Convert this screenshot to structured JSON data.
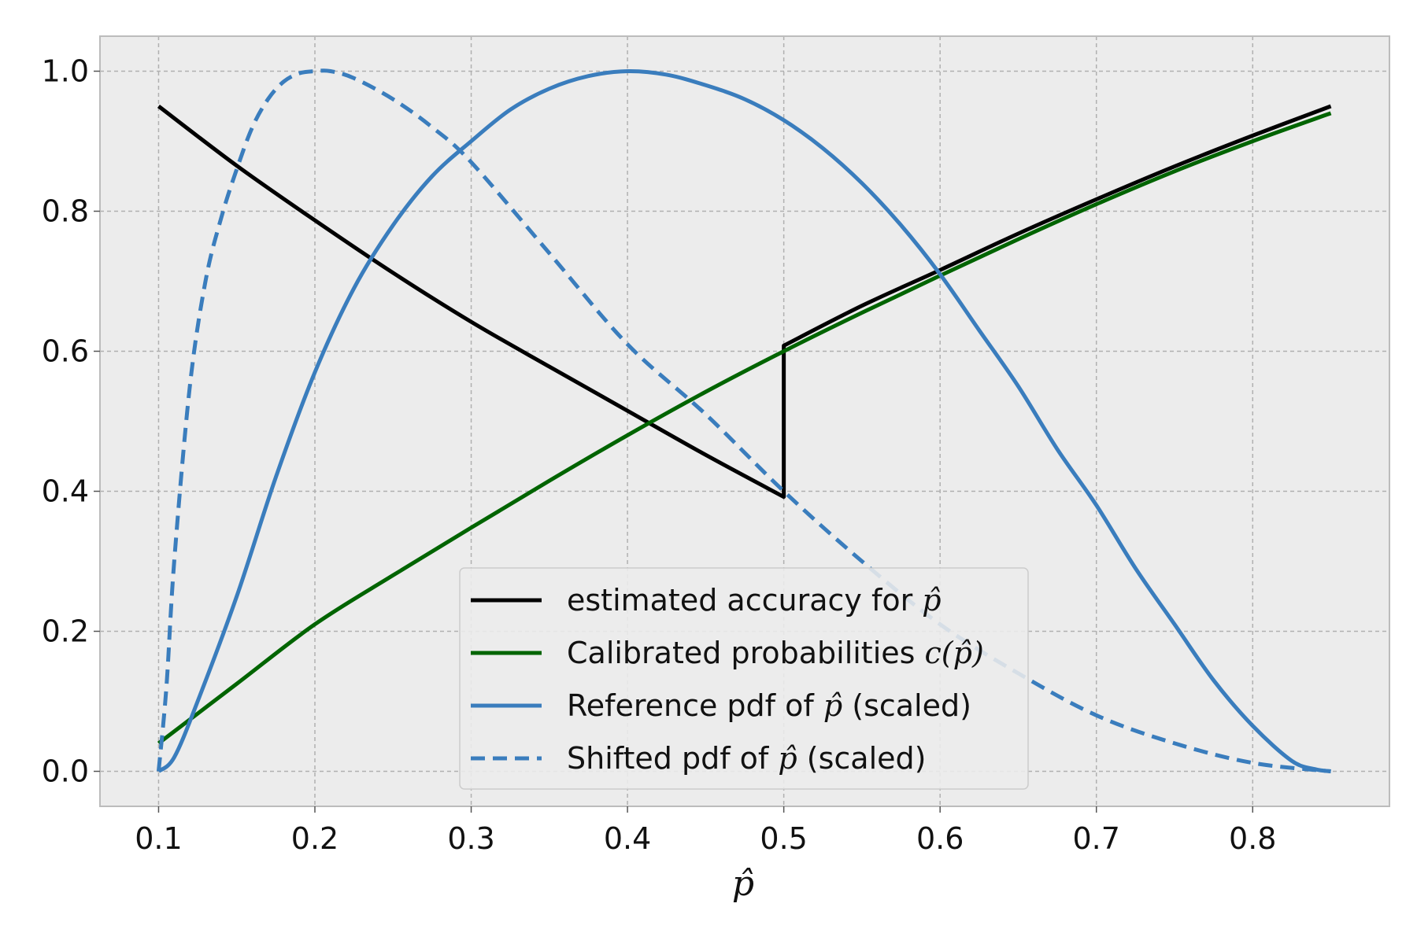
{
  "chart_data": {
    "type": "line",
    "title": "",
    "xlabel": "p̂",
    "ylabel": "",
    "xlim": [
      0.0625,
      0.8875
    ],
    "ylim": [
      -0.05,
      1.05
    ],
    "xticks": [
      "0.1",
      "0.2",
      "0.3",
      "0.4",
      "0.5",
      "0.6",
      "0.7",
      "0.8"
    ],
    "yticks": [
      "0.0",
      "0.2",
      "0.4",
      "0.6",
      "0.8",
      "1.0"
    ],
    "grid": true,
    "legend_position": "lower-center",
    "colors": {
      "background": "#ececec",
      "grid": "#b0b0b0",
      "frame": "#bcbcbc",
      "accuracy": "#000000",
      "calibrated": "#006400",
      "reference": "#3a7dbd",
      "shifted": "#3a7dbd"
    },
    "series": [
      {
        "name": "estimated accuracy for p̂",
        "legend_parts": [
          "estimated accuracy for ",
          "p̂"
        ],
        "style": "solid",
        "color": "#000000",
        "x": [
          0.1,
          0.15,
          0.2,
          0.25,
          0.3,
          0.35,
          0.4,
          0.45,
          0.5,
          0.5,
          0.55,
          0.6,
          0.65,
          0.7,
          0.75,
          0.8,
          0.85
        ],
        "y": [
          0.95,
          0.865,
          0.787,
          0.712,
          0.642,
          0.578,
          0.515,
          0.452,
          0.392,
          0.608,
          0.665,
          0.716,
          0.768,
          0.817,
          0.864,
          0.908,
          0.95
        ]
      },
      {
        "name": "Calibrated probabilities c(p̂)",
        "legend_parts": [
          "Calibrated probabilities ",
          "c(p̂)"
        ],
        "style": "solid",
        "color": "#006400",
        "x": [
          0.1,
          0.15,
          0.2,
          0.25,
          0.3,
          0.35,
          0.4,
          0.45,
          0.5,
          0.55,
          0.6,
          0.65,
          0.7,
          0.75,
          0.8,
          0.85
        ],
        "y": [
          0.04,
          0.125,
          0.21,
          0.28,
          0.348,
          0.415,
          0.48,
          0.542,
          0.6,
          0.655,
          0.708,
          0.76,
          0.81,
          0.857,
          0.9,
          0.94
        ]
      },
      {
        "name": "Reference pdf of p̂ (scaled)",
        "legend_parts": [
          "Reference pdf of ",
          "p̂",
          " (scaled)"
        ],
        "style": "solid",
        "color": "#3a7dbd",
        "x": [
          0.1,
          0.11,
          0.125,
          0.15,
          0.175,
          0.2,
          0.225,
          0.25,
          0.275,
          0.3,
          0.325,
          0.35,
          0.375,
          0.4,
          0.425,
          0.45,
          0.475,
          0.5,
          0.525,
          0.55,
          0.575,
          0.6,
          0.625,
          0.65,
          0.675,
          0.7,
          0.725,
          0.75,
          0.775,
          0.8,
          0.825,
          0.84,
          0.85
        ],
        "y": [
          0.0,
          0.02,
          0.1,
          0.25,
          0.42,
          0.57,
          0.69,
          0.78,
          0.85,
          0.9,
          0.945,
          0.975,
          0.993,
          1.0,
          0.995,
          0.98,
          0.96,
          0.93,
          0.89,
          0.84,
          0.78,
          0.71,
          0.63,
          0.55,
          0.46,
          0.38,
          0.29,
          0.21,
          0.13,
          0.065,
          0.015,
          0.003,
          0.0
        ]
      },
      {
        "name": "Shifted pdf of p̂ (scaled)",
        "legend_parts": [
          "Shifted pdf of ",
          "p̂",
          " (scaled)"
        ],
        "style": "dashed",
        "color": "#3a7dbd",
        "x": [
          0.1,
          0.105,
          0.11,
          0.12,
          0.13,
          0.14,
          0.15,
          0.16,
          0.17,
          0.18,
          0.19,
          0.2,
          0.21,
          0.225,
          0.25,
          0.275,
          0.3,
          0.35,
          0.4,
          0.45,
          0.5,
          0.55,
          0.6,
          0.65,
          0.7,
          0.75,
          0.8,
          0.85
        ],
        "y": [
          0.0,
          0.12,
          0.3,
          0.55,
          0.7,
          0.79,
          0.86,
          0.92,
          0.96,
          0.985,
          0.997,
          1.0,
          1.0,
          0.99,
          0.96,
          0.92,
          0.87,
          0.74,
          0.61,
          0.51,
          0.4,
          0.3,
          0.21,
          0.14,
          0.08,
          0.04,
          0.012,
          0.0
        ]
      }
    ]
  }
}
